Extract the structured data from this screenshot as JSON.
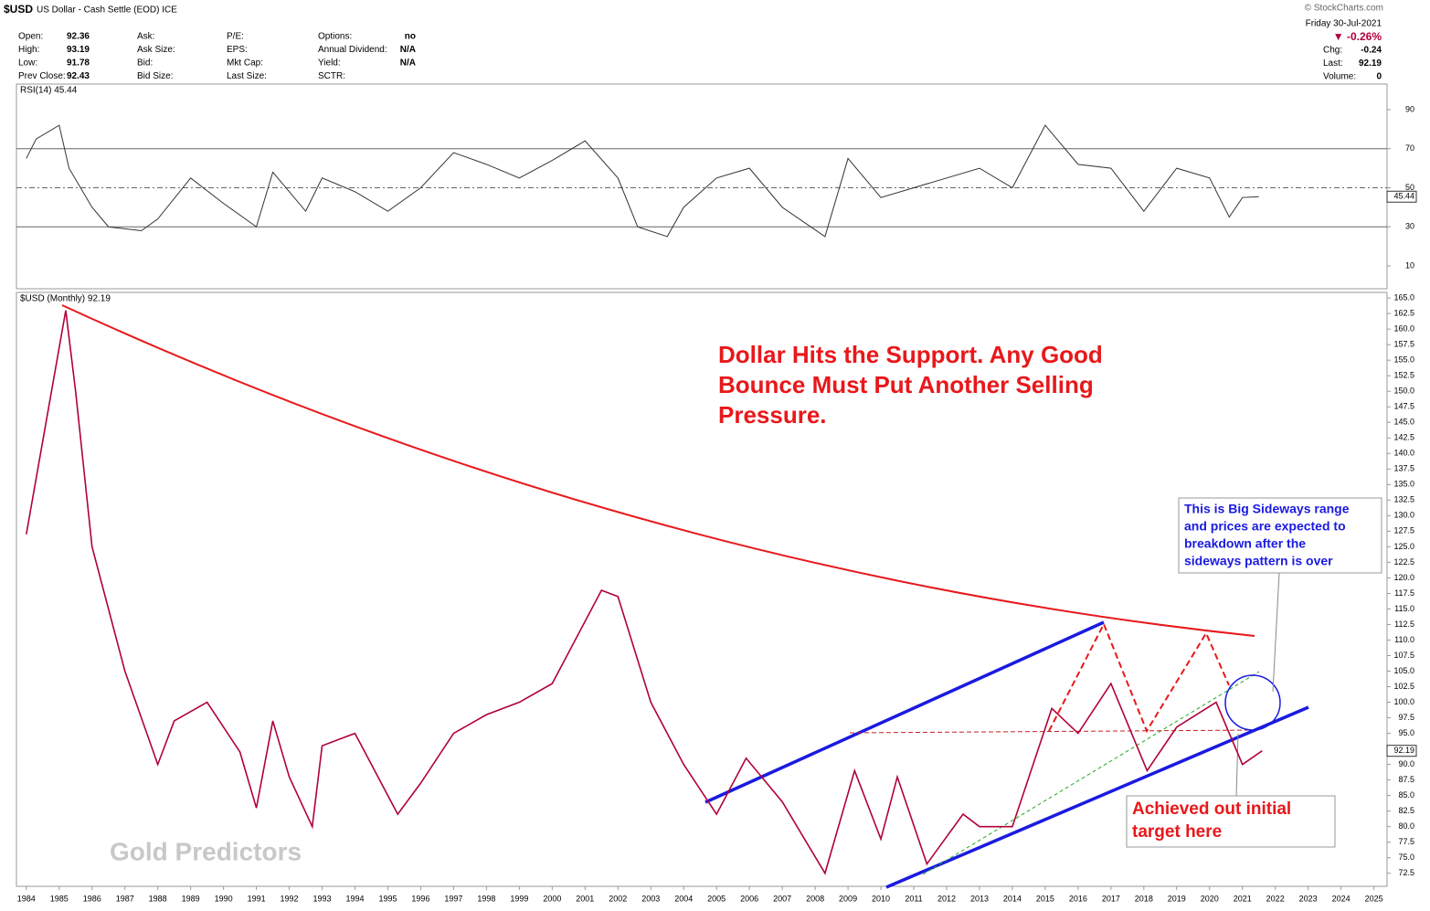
{
  "header": {
    "symbol": "$USD",
    "description": "US Dollar - Cash Settle (EOD) ICE",
    "source": "© StockCharts.com",
    "stats": [
      [
        "Open:",
        "92.36",
        "Ask:",
        "",
        "P/E:",
        "",
        "Options:",
        "no"
      ],
      [
        "High:",
        "93.19",
        "Ask Size:",
        "",
        "EPS:",
        "",
        "Annual Dividend:",
        "N/A"
      ],
      [
        "Low:",
        "91.78",
        "Bid:",
        "",
        "Mkt Cap:",
        "",
        "Yield:",
        "N/A"
      ],
      [
        "Prev Close:",
        "92.43",
        "Bid Size:",
        "",
        "Last Size:",
        "",
        "SCTR:",
        ""
      ]
    ],
    "date": "Friday  30-Jul-2021",
    "change_pct": "▼ -0.26%",
    "right_stats": [
      [
        "Chg:",
        "-0.24"
      ],
      [
        "Last:",
        "92.19"
      ],
      [
        "Volume:",
        "0"
      ]
    ]
  },
  "chart_data": [
    {
      "type": "line",
      "label": "RSI(14) 45.44",
      "color": "#333333",
      "last_label": "45.44",
      "x": [
        1984,
        1984.3,
        1985,
        1985.3,
        1986,
        1986.5,
        1987.5,
        1988,
        1989,
        1990,
        1991,
        1991.5,
        1992.5,
        1993,
        1994,
        1995,
        1996,
        1997,
        1998,
        1999,
        2000,
        2001,
        2002,
        2002.6,
        2003.5,
        2004,
        2005,
        2006,
        2007,
        2008.3,
        2009,
        2010,
        2011,
        2012,
        2013,
        2014,
        2015,
        2016,
        2017,
        2018,
        2019,
        2020,
        2020.6,
        2021,
        2021.5
      ],
      "values": [
        65,
        75,
        82,
        60,
        40,
        30,
        28,
        34,
        55,
        42,
        30,
        58,
        38,
        55,
        48,
        38,
        50,
        68,
        62,
        55,
        64,
        74,
        55,
        30,
        25,
        40,
        55,
        60,
        40,
        25,
        65,
        45,
        50,
        55,
        60,
        50,
        82,
        62,
        60,
        38,
        60,
        55,
        35,
        45,
        45.44
      ],
      "xlim": [
        1983.7,
        2025.4
      ],
      "ylim": [
        -1.7,
        103.1
      ],
      "yticks": [
        10,
        30,
        50,
        70,
        90
      ],
      "reference_lines": [
        30,
        50,
        70
      ]
    },
    {
      "type": "line",
      "label": "$USD (Monthly) 92.19",
      "color": "#b0003a",
      "last_label": "92.19",
      "x": [
        1984,
        1985.2,
        1985.5,
        1986,
        1987,
        1988,
        1988.5,
        1989.5,
        1990.5,
        1991,
        1991.5,
        1992,
        1992.7,
        1993,
        1994,
        1995.3,
        1996,
        1997,
        1998,
        1999,
        2000,
        2001.5,
        2002,
        2003,
        2004,
        2005,
        2005.9,
        2007,
        2008.3,
        2009.2,
        2010,
        2010.5,
        2011.4,
        2012.5,
        2013,
        2014,
        2015.2,
        2016,
        2017,
        2018.1,
        2019,
        2020.2,
        2021,
        2021.6
      ],
      "values": [
        127,
        163,
        150,
        125,
        105,
        90,
        97,
        100,
        92,
        83,
        97,
        88,
        80,
        93,
        95,
        82,
        87,
        95,
        98,
        100,
        103,
        118,
        117,
        100,
        90,
        82,
        91,
        84,
        72.5,
        89,
        78,
        88,
        74,
        82,
        80,
        80,
        99,
        95,
        103,
        89,
        96,
        100,
        90,
        92.19
      ],
      "xlim": [
        1983.7,
        2025.4
      ],
      "ylim": [
        70.4,
        165.9
      ],
      "xticks": [
        1984,
        1985,
        1986,
        1987,
        1988,
        1989,
        1990,
        1991,
        1992,
        1993,
        1994,
        1995,
        1996,
        1997,
        1998,
        1999,
        2000,
        2001,
        2002,
        2003,
        2004,
        2005,
        2006,
        2007,
        2008,
        2009,
        2010,
        2011,
        2012,
        2013,
        2014,
        2015,
        2016,
        2017,
        2018,
        2019,
        2020,
        2021,
        2022,
        2023,
        2024,
        2025
      ],
      "yticks": [
        72.5,
        {
          "value": 75,
          "label": "75.0"
        },
        77.5,
        {
          "value": 80,
          "label": "80.0"
        },
        82.5,
        {
          "value": 85,
          "label": "85.0"
        },
        87.5,
        {
          "value": 90,
          "label": "90.0"
        },
        92.5,
        {
          "value": 95,
          "label": "95.0"
        },
        97.5,
        {
          "value": 100,
          "label": "100.0"
        },
        102.5,
        {
          "value": 105,
          "label": "105.0"
        },
        107.5,
        {
          "value": 110,
          "label": "110.0"
        },
        112.5,
        {
          "value": 115,
          "label": "115.0"
        },
        117.5,
        {
          "value": 120,
          "label": "120.0"
        },
        122.5,
        {
          "value": 125,
          "label": "125.0"
        },
        127.5,
        {
          "value": 130,
          "label": "130.0"
        },
        132.5,
        {
          "value": 135,
          "label": "135.0"
        },
        137.5,
        {
          "value": 140,
          "label": "140.0"
        },
        142.5,
        {
          "value": 145,
          "label": "145.0"
        },
        147.5,
        {
          "value": 150,
          "label": "150.0"
        },
        152.5,
        {
          "value": 155,
          "label": "155.0"
        },
        157.5,
        {
          "value": 160,
          "label": "160.0"
        },
        162.5,
        {
          "value": 165,
          "label": "165.0"
        }
      ],
      "annotations": {
        "headline": [
          "Dollar Hits the Support. Any Good",
          "Bounce Must Put Another Selling",
          "Pressure."
        ],
        "blue_box": [
          "This is Big Sideways range",
          "and prices are expected to",
          "breakdown after the",
          "sideways pattern is over"
        ],
        "red_box": [
          "Achieved out initial",
          "target here"
        ],
        "watermark": "Gold Predictors"
      }
    }
  ]
}
